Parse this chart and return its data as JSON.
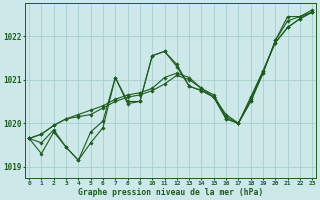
{
  "title": "Graphe pression niveau de la mer (hPa)",
  "bg_color": "#cce8e8",
  "grid_color": "#a8cece",
  "line_color": "#1e5c1e",
  "x_ticks": [
    0,
    1,
    2,
    3,
    4,
    5,
    6,
    7,
    8,
    9,
    10,
    11,
    12,
    13,
    14,
    15,
    16,
    17,
    18,
    19,
    20,
    21,
    22,
    23
  ],
  "ylim": [
    1018.75,
    1022.75
  ],
  "yticks": [
    1019,
    1020,
    1021,
    1022
  ],
  "lines": [
    [
      1019.65,
      1019.55,
      1019.85,
      1019.45,
      1019.15,
      1019.55,
      1019.9,
      1021.05,
      1020.45,
      1020.5,
      1021.55,
      1021.65,
      1021.3,
      1020.85,
      1020.75,
      1020.6,
      1020.1,
      1020.0,
      1020.5,
      1021.15,
      1021.9,
      1022.35,
      1022.45,
      1022.55
    ],
    [
      1019.65,
      1019.75,
      1019.95,
      1020.1,
      1020.15,
      1020.2,
      1020.35,
      1020.5,
      1020.6,
      1020.65,
      1020.75,
      1020.9,
      1021.1,
      1021.0,
      1020.8,
      1020.6,
      1020.2,
      1020.0,
      1020.6,
      1021.2,
      1021.85,
      1022.2,
      1022.4,
      1022.55
    ],
    [
      1019.65,
      1019.75,
      1019.95,
      1020.1,
      1020.2,
      1020.3,
      1020.4,
      1020.55,
      1020.65,
      1020.7,
      1020.8,
      1021.05,
      1021.15,
      1021.05,
      1020.8,
      1020.65,
      1020.15,
      1020.0,
      1020.55,
      1021.2,
      1021.85,
      1022.2,
      1022.4,
      1022.55
    ],
    [
      1019.65,
      1019.3,
      1019.8,
      1019.45,
      1019.15,
      1019.8,
      1020.05,
      1021.05,
      1020.5,
      1020.5,
      1021.55,
      1021.65,
      1021.35,
      1020.85,
      1020.75,
      1020.6,
      1020.1,
      1020.0,
      1020.5,
      1021.15,
      1021.9,
      1022.45,
      1022.45,
      1022.6
    ]
  ]
}
